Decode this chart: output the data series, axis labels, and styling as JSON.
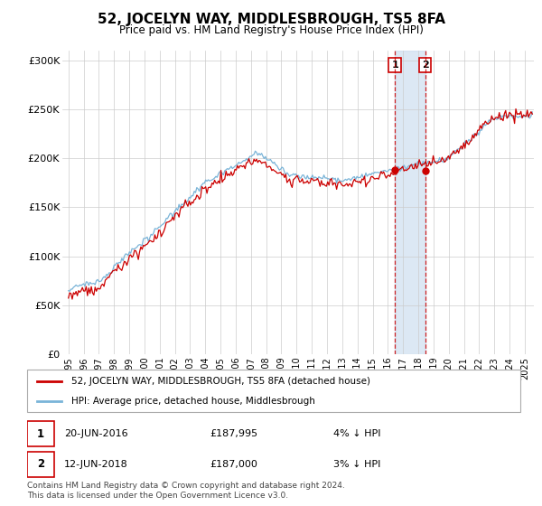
{
  "title": "52, JOCELYN WAY, MIDDLESBROUGH, TS5 8FA",
  "subtitle": "Price paid vs. HM Land Registry's House Price Index (HPI)",
  "legend_label_1": "52, JOCELYN WAY, MIDDLESBROUGH, TS5 8FA (detached house)",
  "legend_label_2": "HPI: Average price, detached house, Middlesbrough",
  "sale1_date": "20-JUN-2016",
  "sale1_price": "£187,995",
  "sale1_note": "4% ↓ HPI",
  "sale2_date": "12-JUN-2018",
  "sale2_price": "£187,000",
  "sale2_note": "3% ↓ HPI",
  "footer": "Contains HM Land Registry data © Crown copyright and database right 2024.\nThis data is licensed under the Open Government Licence v3.0.",
  "hpi_color": "#7ab4d8",
  "price_color": "#cc0000",
  "vline_color": "#cc0000",
  "shade_color": "#c6d9ed",
  "background_color": "#ffffff",
  "grid_color": "#cccccc",
  "ylim": [
    0,
    310000
  ],
  "yticks": [
    0,
    50000,
    100000,
    150000,
    200000,
    250000,
    300000
  ],
  "ytick_labels": [
    "£0",
    "£50K",
    "£100K",
    "£150K",
    "£200K",
    "£250K",
    "£300K"
  ],
  "sale1_year": 2016.46,
  "sale2_year": 2018.45,
  "sale1_price_val": 187995,
  "sale2_price_val": 187000,
  "xstart_year": 1995,
  "xend_year": 2025
}
